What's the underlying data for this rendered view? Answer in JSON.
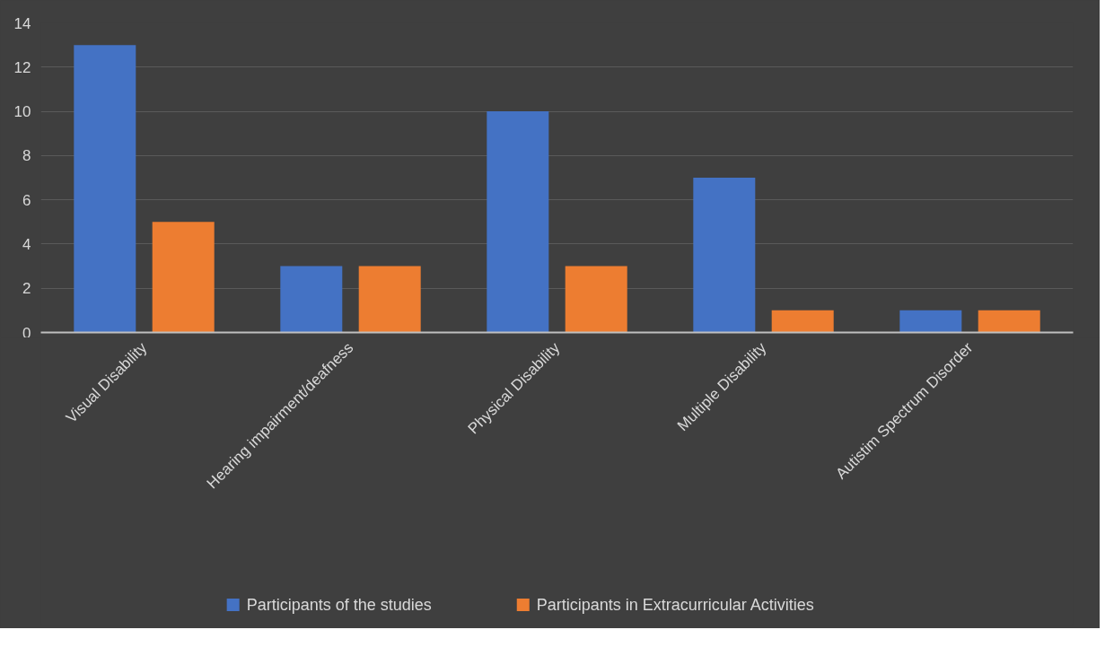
{
  "chart_data": {
    "type": "bar",
    "categories": [
      "Visual Disability",
      "Hearing impairment/deafness",
      "Physical Disability",
      "Multiple Disability",
      "Autistim Spectrum Disorder"
    ],
    "series": [
      {
        "name": "Participants of the studies",
        "color": "#4472c4",
        "values": [
          13,
          3,
          10,
          7,
          1
        ]
      },
      {
        "name": "Participants in Extracurricular Activities",
        "color": "#ed7d31",
        "values": [
          5,
          3,
          3,
          1,
          1
        ]
      }
    ],
    "ylim": [
      0,
      14
    ],
    "yticks": [
      0,
      2,
      4,
      6,
      8,
      10,
      12,
      14
    ],
    "grid": "y",
    "legend": "bottom"
  }
}
